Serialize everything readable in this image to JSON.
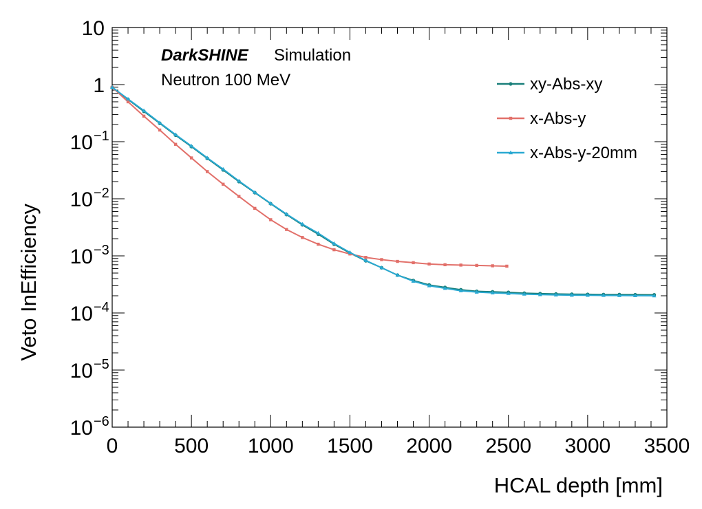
{
  "annotations": {
    "experiment": "DarkSHINE",
    "status": "Simulation",
    "sample": "Neutron 100 MeV"
  },
  "chart_data": {
    "type": "line",
    "xlabel": "HCAL depth [mm]",
    "ylabel": "Veto InEfficiency",
    "xlim": [
      0,
      3500
    ],
    "ylim": [
      1e-06,
      10
    ],
    "yscale": "log",
    "x_ticks": [
      0,
      500,
      1000,
      1500,
      2000,
      2500,
      3000,
      3500
    ],
    "x_tick_labels": [
      "0",
      "500",
      "1000",
      "1500",
      "2000",
      "2500",
      "3000",
      "3500"
    ],
    "y_ticks": [
      10,
      1,
      0.1,
      0.01,
      0.001,
      0.0001,
      1e-05,
      1e-06
    ],
    "y_tick_labels": [
      {
        "base": "10",
        "exp": ""
      },
      {
        "base": "1",
        "exp": ""
      },
      {
        "base": "10",
        "exp": "−1"
      },
      {
        "base": "10",
        "exp": "−2"
      },
      {
        "base": "10",
        "exp": "−3"
      },
      {
        "base": "10",
        "exp": "−4"
      },
      {
        "base": "10",
        "exp": "−5"
      },
      {
        "base": "10",
        "exp": "−6"
      }
    ],
    "grid": false,
    "legend_position": "top-right",
    "series": [
      {
        "name": "xy-Abs-xy",
        "color": "#1a7f7a",
        "marker": "circle",
        "x": [
          0,
          100,
          200,
          300,
          400,
          500,
          600,
          700,
          800,
          900,
          1000,
          1100,
          1200,
          1300,
          1400,
          1500,
          1600,
          1700,
          1800,
          1900,
          2000,
          2100,
          2200,
          2300,
          2400,
          2500,
          2600,
          2700,
          2800,
          2900,
          3000,
          3100,
          3200,
          3300,
          3420
        ],
        "y": [
          0.9,
          0.55,
          0.34,
          0.21,
          0.13,
          0.082,
          0.051,
          0.032,
          0.02,
          0.0128,
          0.0082,
          0.0053,
          0.0035,
          0.0024,
          0.0016,
          0.00112,
          0.00082,
          0.00062,
          0.00046,
          0.00037,
          0.00031,
          0.00028,
          0.000255,
          0.00024,
          0.000235,
          0.00023,
          0.000222,
          0.000218,
          0.000215,
          0.000213,
          0.000212,
          0.00021,
          0.00021,
          0.000209,
          0.000208
        ]
      },
      {
        "name": "x-Abs-y",
        "color": "#e2706a",
        "marker": "square",
        "x": [
          0,
          100,
          200,
          300,
          400,
          500,
          600,
          700,
          800,
          900,
          1000,
          1100,
          1200,
          1300,
          1400,
          1500,
          1600,
          1700,
          1800,
          1900,
          2000,
          2100,
          2200,
          2300,
          2400,
          2490
        ],
        "y": [
          0.9,
          0.5,
          0.28,
          0.16,
          0.09,
          0.052,
          0.03,
          0.018,
          0.011,
          0.0068,
          0.0043,
          0.0029,
          0.0021,
          0.0016,
          0.00128,
          0.00108,
          0.00094,
          0.00086,
          0.0008,
          0.00076,
          0.00072,
          0.0007,
          0.00069,
          0.00068,
          0.00067,
          0.00066
        ]
      },
      {
        "name": "x-Abs-y-20mm",
        "color": "#2aa9d2",
        "marker": "triangle",
        "x": [
          0,
          100,
          200,
          300,
          400,
          500,
          600,
          700,
          800,
          900,
          1000,
          1100,
          1200,
          1300,
          1400,
          1500,
          1600,
          1700,
          1800,
          1900,
          2000,
          2100,
          2200,
          2300,
          2400,
          2500,
          2600,
          2700,
          2800,
          2900,
          3000,
          3100,
          3200,
          3300,
          3420
        ],
        "y": [
          0.9,
          0.56,
          0.35,
          0.215,
          0.133,
          0.084,
          0.052,
          0.033,
          0.0205,
          0.013,
          0.0083,
          0.0054,
          0.0036,
          0.0025,
          0.00165,
          0.00115,
          0.00083,
          0.00062,
          0.00046,
          0.00036,
          0.0003,
          0.00027,
          0.000245,
          0.000232,
          0.000225,
          0.00022,
          0.000214,
          0.00021,
          0.000207,
          0.000205,
          0.000204,
          0.000203,
          0.000202,
          0.000201,
          0.0002
        ]
      }
    ]
  }
}
